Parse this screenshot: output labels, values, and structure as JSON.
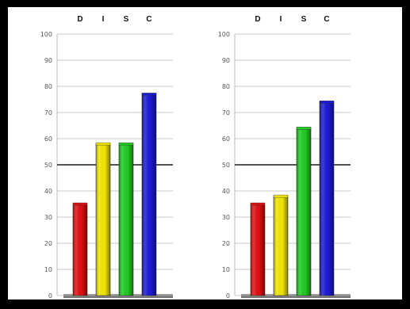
{
  "chart_data": [
    {
      "type": "bar",
      "categories": [
        "D",
        "I",
        "S",
        "C"
      ],
      "values": [
        35,
        58,
        58,
        77
      ],
      "ylim": [
        0,
        100
      ],
      "yticks": [
        0,
        10,
        20,
        30,
        40,
        50,
        60,
        70,
        80,
        90,
        100
      ],
      "reference_line": 50,
      "grid": true,
      "colors": [
        "#e01010",
        "#f2e800",
        "#22cc22",
        "#1a1ad6"
      ]
    },
    {
      "type": "bar",
      "categories": [
        "D",
        "I",
        "S",
        "C"
      ],
      "values": [
        35,
        38,
        64,
        74
      ],
      "ylim": [
        0,
        100
      ],
      "yticks": [
        0,
        10,
        20,
        30,
        40,
        50,
        60,
        70,
        80,
        90,
        100
      ],
      "reference_line": 50,
      "grid": true,
      "colors": [
        "#e01010",
        "#f2e800",
        "#22cc22",
        "#1a1ad6"
      ]
    }
  ]
}
